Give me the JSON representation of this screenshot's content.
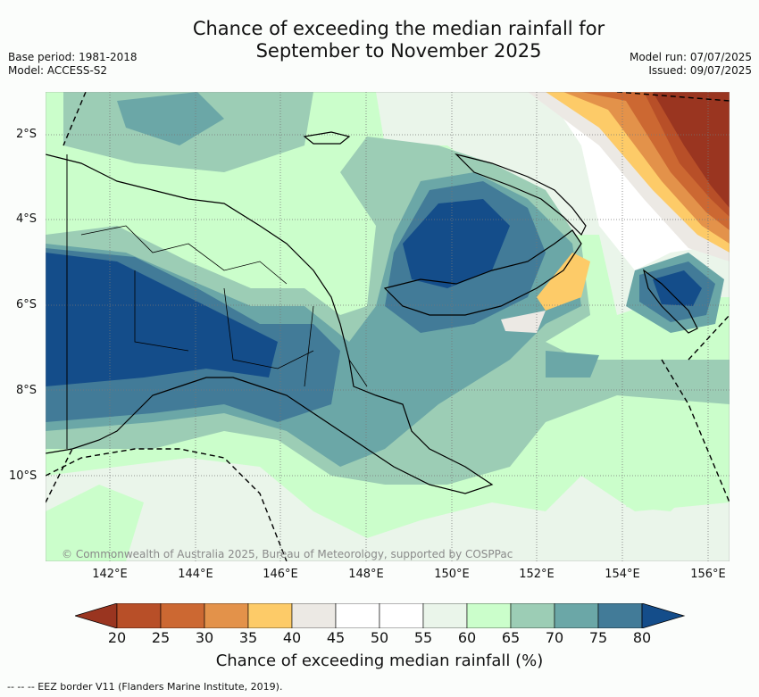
{
  "title": {
    "line1": "Chance of exceeding the median rainfall for",
    "line2": "September to November 2025"
  },
  "meta": {
    "base_period": "Base period: 1981-2018",
    "model": "Model: ACCESS-S2",
    "model_run": "Model run: 07/07/2025",
    "issued": "Issued: 09/07/2025"
  },
  "axes": {
    "lat_labels": [
      "2°S",
      "4°S",
      "6°S",
      "8°S",
      "10°S"
    ],
    "lon_labels": [
      "142°E",
      "144°E",
      "146°E",
      "148°E",
      "150°E",
      "152°E",
      "154°E",
      "156°E"
    ]
  },
  "colorbar": {
    "ticks": [
      "20",
      "25",
      "30",
      "35",
      "40",
      "45",
      "50",
      "55",
      "60",
      "65",
      "70",
      "75",
      "80"
    ],
    "colors": [
      "#9a3520",
      "#b84f28",
      "#cc6832",
      "#e3924a",
      "#fdcb68",
      "#ece9e4",
      "#ffffff",
      "#ffffff",
      "#eaf5ea",
      "#cbfecb",
      "#9ccdb5",
      "#6ba7a7",
      "#427b98",
      "#144d8a"
    ],
    "label": "Chance of exceeding median rainfall (%)"
  },
  "copyright": "© Commonwealth of Australia 2025, Bureau of Meteorology, supported by COSPPac",
  "legend_note": "--  --  -- EEZ border V11 (Flanders Marine Institute, 2019)."
}
